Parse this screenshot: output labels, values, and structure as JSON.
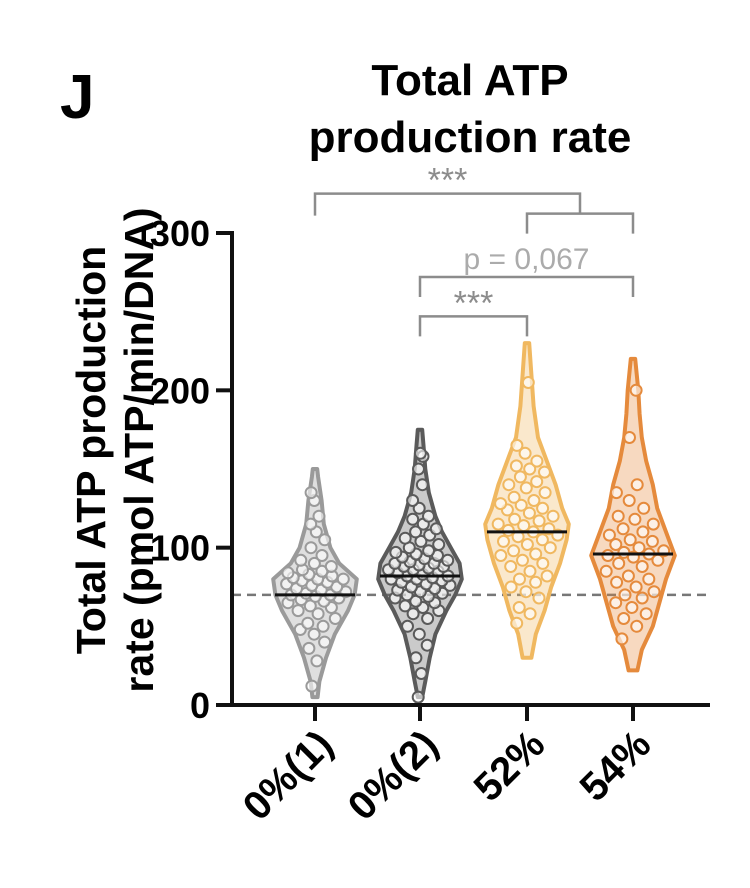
{
  "panel_letter": "J",
  "chart_data": {
    "type": "violin",
    "title": [
      "Total ATP",
      "production rate"
    ],
    "ylabel": [
      "Total ATP production",
      "rate (pmol ATP/min/DNA)"
    ],
    "xlabel": "",
    "ylim": [
      0,
      300
    ],
    "yticks": [
      0,
      100,
      200,
      300
    ],
    "categories": [
      "0%(1)",
      "0%(2)",
      "52%",
      "54%"
    ],
    "reference_line": 70,
    "colors": {
      "0%(1)": "#9a9a9a",
      "0%(2)": "#5a5a5a",
      "52%": "#f0b860",
      "54%": "#e58a3c",
      "reference": "#777777",
      "bracket": "#8c8c8c",
      "bracket_ns": "#ababab"
    },
    "series": [
      {
        "category": "0%(1)",
        "median": 70,
        "min": 5,
        "max": 150,
        "density": [
          [
            5,
            0.06
          ],
          [
            15,
            0.1
          ],
          [
            30,
            0.25
          ],
          [
            45,
            0.45
          ],
          [
            60,
            0.75
          ],
          [
            70,
            0.9
          ],
          [
            80,
            0.95
          ],
          [
            90,
            0.55
          ],
          [
            100,
            0.35
          ],
          [
            115,
            0.2
          ],
          [
            130,
            0.15
          ],
          [
            145,
            0.07
          ],
          [
            150,
            0.05
          ]
        ],
        "points": [
          12,
          28,
          36,
          40,
          45,
          48,
          50,
          52,
          55,
          58,
          60,
          62,
          63,
          65,
          66,
          67,
          68,
          69,
          70,
          70,
          71,
          72,
          73,
          74,
          75,
          76,
          77,
          78,
          79,
          80,
          80,
          81,
          82,
          83,
          84,
          85,
          86,
          88,
          90,
          92,
          95,
          100,
          105,
          110,
          115,
          120,
          130,
          135
        ]
      },
      {
        "category": "0%(2)",
        "median": 82,
        "min": 5,
        "max": 175,
        "density": [
          [
            5,
            0.05
          ],
          [
            15,
            0.12
          ],
          [
            30,
            0.22
          ],
          [
            45,
            0.35
          ],
          [
            60,
            0.6
          ],
          [
            70,
            0.8
          ],
          [
            80,
            0.95
          ],
          [
            90,
            0.9
          ],
          [
            100,
            0.7
          ],
          [
            110,
            0.5
          ],
          [
            120,
            0.35
          ],
          [
            135,
            0.2
          ],
          [
            150,
            0.12
          ],
          [
            165,
            0.08
          ],
          [
            175,
            0.05
          ]
        ],
        "points": [
          5,
          20,
          30,
          38,
          45,
          50,
          55,
          58,
          60,
          62,
          63,
          65,
          66,
          68,
          69,
          70,
          71,
          72,
          73,
          74,
          75,
          76,
          77,
          78,
          79,
          80,
          80,
          81,
          82,
          82,
          83,
          84,
          85,
          86,
          86,
          87,
          88,
          88,
          89,
          90,
          90,
          91,
          92,
          93,
          94,
          95,
          96,
          97,
          98,
          100,
          102,
          104,
          106,
          108,
          110,
          112,
          115,
          118,
          120,
          125,
          130,
          140,
          150,
          158,
          160
        ]
      },
      {
        "category": "52%",
        "median": 110,
        "min": 30,
        "max": 230,
        "density": [
          [
            30,
            0.1
          ],
          [
            45,
            0.2
          ],
          [
            60,
            0.4
          ],
          [
            75,
            0.55
          ],
          [
            90,
            0.75
          ],
          [
            105,
            0.9
          ],
          [
            115,
            0.95
          ],
          [
            125,
            0.8
          ],
          [
            140,
            0.65
          ],
          [
            155,
            0.45
          ],
          [
            170,
            0.25
          ],
          [
            190,
            0.15
          ],
          [
            210,
            0.1
          ],
          [
            230,
            0.05
          ]
        ],
        "points": [
          52,
          58,
          62,
          68,
          72,
          75,
          78,
          80,
          82,
          85,
          88,
          90,
          92,
          95,
          96,
          98,
          100,
          102,
          104,
          105,
          107,
          108,
          110,
          111,
          112,
          114,
          115,
          117,
          118,
          120,
          122,
          124,
          125,
          127,
          128,
          130,
          132,
          135,
          138,
          140,
          142,
          145,
          148,
          150,
          152,
          155,
          160,
          165,
          205
        ]
      },
      {
        "category": "54%",
        "median": 96,
        "min": 22,
        "max": 220,
        "density": [
          [
            22,
            0.1
          ],
          [
            35,
            0.2
          ],
          [
            50,
            0.45
          ],
          [
            65,
            0.6
          ],
          [
            80,
            0.75
          ],
          [
            95,
            0.95
          ],
          [
            110,
            0.75
          ],
          [
            125,
            0.55
          ],
          [
            140,
            0.45
          ],
          [
            155,
            0.3
          ],
          [
            170,
            0.2
          ],
          [
            185,
            0.15
          ],
          [
            200,
            0.12
          ],
          [
            220,
            0.05
          ]
        ],
        "points": [
          42,
          50,
          55,
          58,
          62,
          65,
          68,
          70,
          72,
          75,
          78,
          80,
          82,
          85,
          88,
          90,
          92,
          94,
          95,
          96,
          97,
          98,
          100,
          102,
          104,
          105,
          108,
          110,
          112,
          115,
          118,
          120,
          125,
          130,
          135,
          140,
          170,
          200
        ]
      }
    ],
    "comparisons": [
      {
        "from": "0%(1)",
        "to": [
          "52%",
          "54%"
        ],
        "label": "***",
        "y": 325
      },
      {
        "from": "0%(2)",
        "to": [
          "54%"
        ],
        "label": "p = 0,067",
        "y": 272
      },
      {
        "from": "0%(2)",
        "to": [
          "52%"
        ],
        "label": "***",
        "y": 247
      }
    ]
  }
}
